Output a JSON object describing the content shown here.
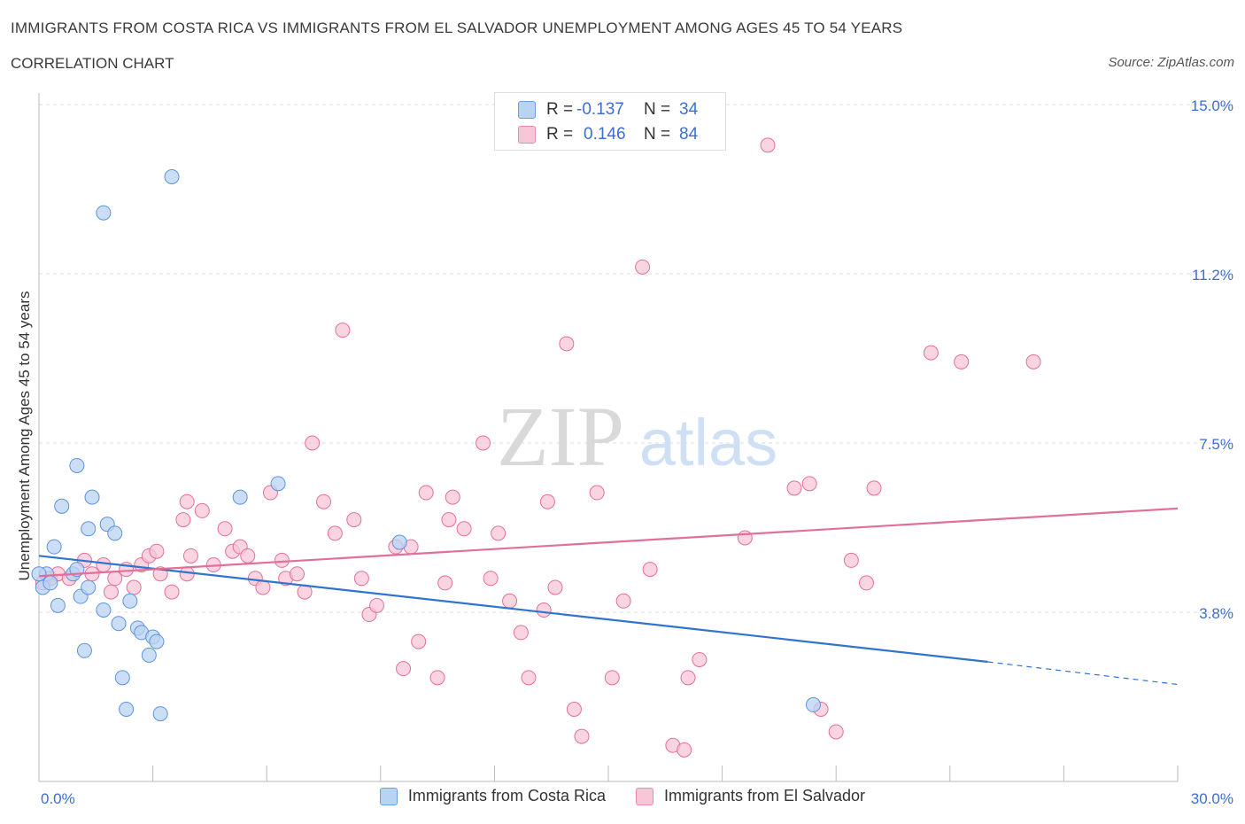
{
  "header": {
    "title": "IMMIGRANTS FROM COSTA RICA VS IMMIGRANTS FROM EL SALVADOR UNEMPLOYMENT AMONG AGES 45 TO 54 YEARS",
    "subtitle": "CORRELATION CHART",
    "source": "Source: ZipAtlas.com"
  },
  "legend": {
    "rows": [
      {
        "r_label": "R =",
        "r_value": "-0.137",
        "n_label": "N =",
        "n_value": "34",
        "color": "#a9c8f0"
      },
      {
        "r_label": "R =",
        "r_value": "0.146",
        "n_label": "N =",
        "n_value": "84",
        "color": "#f7bfd0"
      }
    ]
  },
  "bottom_legend": {
    "items": [
      {
        "label": "Immigrants from Costa Rica",
        "color": "#a9c8f0"
      },
      {
        "label": "Immigrants from El Salvador",
        "color": "#f7bfd0"
      }
    ]
  },
  "watermark": {
    "zip": "ZIP",
    "atlas": "atlas"
  },
  "chart_data": {
    "type": "scatter",
    "ylabel": "Unemployment Among Ages 45 to 54 years",
    "xlim": [
      0,
      30
    ],
    "ylim": [
      0,
      15
    ],
    "x_tick_labels": {
      "left": "0.0%",
      "right": "30.0%"
    },
    "y_ticks": [
      {
        "value": 15.0,
        "label": "15.0%"
      },
      {
        "value": 11.25,
        "label": "11.2%"
      },
      {
        "value": 7.5,
        "label": "7.5%"
      },
      {
        "value": 3.75,
        "label": "3.8%"
      }
    ],
    "colors": {
      "costa_rica": "#5b93e0",
      "costa_rica_fill": "#b9d3f3",
      "el_salvador": "#e46f98",
      "el_salvador_fill": "#f8c6d6",
      "trend_blue": "#2f74d0",
      "trend_pink": "#e0709a"
    },
    "series": [
      {
        "name": "Immigrants from Costa Rica",
        "points": [
          [
            0.1,
            4.3
          ],
          [
            0.2,
            4.6
          ],
          [
            0.3,
            4.4
          ],
          [
            0.4,
            5.2
          ],
          [
            0.5,
            3.9
          ],
          [
            0.6,
            6.1
          ],
          [
            0.9,
            4.6
          ],
          [
            1.0,
            4.7
          ],
          [
            1.0,
            7.0
          ],
          [
            1.1,
            4.1
          ],
          [
            1.2,
            2.9
          ],
          [
            1.3,
            4.3
          ],
          [
            1.3,
            5.6
          ],
          [
            1.4,
            6.3
          ],
          [
            1.7,
            12.6
          ],
          [
            1.7,
            3.8
          ],
          [
            1.8,
            5.7
          ],
          [
            2.0,
            5.5
          ],
          [
            2.1,
            3.5
          ],
          [
            2.2,
            2.3
          ],
          [
            2.3,
            1.6
          ],
          [
            2.4,
            4.0
          ],
          [
            2.6,
            3.4
          ],
          [
            2.7,
            3.3
          ],
          [
            2.9,
            2.8
          ],
          [
            3.0,
            3.2
          ],
          [
            3.1,
            3.1
          ],
          [
            3.2,
            1.5
          ],
          [
            3.5,
            13.4
          ],
          [
            5.3,
            6.3
          ],
          [
            6.3,
            6.6
          ],
          [
            9.5,
            5.3
          ],
          [
            20.4,
            1.7
          ],
          [
            0.0,
            4.6
          ]
        ]
      },
      {
        "name": "Immigrants from El Salvador",
        "points": [
          [
            0.1,
            4.4
          ],
          [
            0.3,
            4.5
          ],
          [
            0.5,
            4.6
          ],
          [
            0.8,
            4.5
          ],
          [
            1.2,
            4.9
          ],
          [
            1.4,
            4.6
          ],
          [
            1.7,
            4.8
          ],
          [
            1.9,
            4.2
          ],
          [
            2.0,
            4.5
          ],
          [
            2.3,
            4.7
          ],
          [
            2.5,
            4.3
          ],
          [
            2.7,
            4.8
          ],
          [
            2.9,
            5.0
          ],
          [
            3.1,
            5.1
          ],
          [
            3.2,
            4.6
          ],
          [
            3.5,
            4.2
          ],
          [
            3.8,
            5.8
          ],
          [
            3.9,
            6.2
          ],
          [
            4.0,
            5.0
          ],
          [
            4.3,
            6.0
          ],
          [
            4.6,
            4.8
          ],
          [
            4.9,
            5.6
          ],
          [
            5.1,
            5.1
          ],
          [
            5.3,
            5.2
          ],
          [
            5.5,
            5.0
          ],
          [
            5.7,
            4.5
          ],
          [
            5.9,
            4.3
          ],
          [
            6.1,
            6.4
          ],
          [
            6.4,
            4.9
          ],
          [
            6.5,
            4.5
          ],
          [
            6.8,
            4.6
          ],
          [
            7.0,
            4.2
          ],
          [
            7.2,
            7.5
          ],
          [
            7.5,
            6.2
          ],
          [
            7.8,
            5.5
          ],
          [
            8.3,
            5.8
          ],
          [
            8.5,
            4.5
          ],
          [
            8.7,
            3.7
          ],
          [
            8.9,
            3.9
          ],
          [
            9.4,
            5.2
          ],
          [
            9.6,
            2.5
          ],
          [
            9.8,
            5.2
          ],
          [
            10.0,
            3.1
          ],
          [
            10.2,
            6.4
          ],
          [
            10.5,
            2.3
          ],
          [
            10.7,
            4.4
          ],
          [
            10.8,
            5.8
          ],
          [
            10.9,
            6.3
          ],
          [
            11.2,
            5.6
          ],
          [
            11.7,
            7.5
          ],
          [
            11.9,
            4.5
          ],
          [
            12.1,
            5.5
          ],
          [
            12.4,
            4.0
          ],
          [
            12.7,
            3.3
          ],
          [
            12.9,
            2.3
          ],
          [
            13.3,
            3.8
          ],
          [
            13.4,
            6.2
          ],
          [
            13.6,
            4.3
          ],
          [
            13.9,
            9.7
          ],
          [
            14.1,
            1.6
          ],
          [
            14.3,
            1.0
          ],
          [
            14.7,
            6.4
          ],
          [
            15.1,
            2.3
          ],
          [
            15.4,
            4.0
          ],
          [
            15.9,
            11.4
          ],
          [
            16.1,
            4.7
          ],
          [
            16.7,
            0.8
          ],
          [
            17.0,
            0.7
          ],
          [
            17.1,
            2.3
          ],
          [
            17.4,
            2.7
          ],
          [
            8.0,
            10.0
          ],
          [
            18.6,
            5.4
          ],
          [
            19.2,
            14.1
          ],
          [
            19.9,
            6.5
          ],
          [
            20.3,
            6.6
          ],
          [
            20.6,
            1.6
          ],
          [
            21.0,
            1.1
          ],
          [
            21.4,
            4.9
          ],
          [
            21.8,
            4.4
          ],
          [
            22.0,
            6.5
          ],
          [
            23.5,
            9.5
          ],
          [
            24.3,
            9.3
          ],
          [
            26.2,
            9.3
          ],
          [
            3.9,
            4.6
          ]
        ]
      }
    ],
    "trend_lines": [
      {
        "name": "Immigrants from Costa Rica",
        "x0": 0,
        "y0": 5.0,
        "x1": 25.0,
        "y1": 2.65,
        "dashed_to_x": 30.0,
        "dashed_to_y": 2.15
      },
      {
        "name": "Immigrants from El Salvador",
        "x0": 0,
        "y0": 4.55,
        "x1": 30.0,
        "y1": 6.05
      }
    ],
    "grid": true
  }
}
